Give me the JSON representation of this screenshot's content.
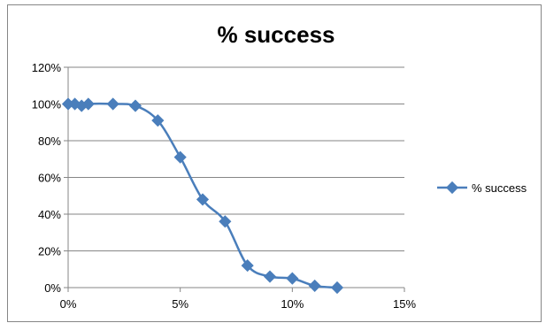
{
  "chart_data": {
    "type": "scatter",
    "title": "% success",
    "xlabel": "",
    "ylabel": "",
    "xlim": [
      0,
      0.15
    ],
    "ylim": [
      0,
      1.2
    ],
    "x_ticks": [
      "0%",
      "5%",
      "10%",
      "15%"
    ],
    "y_ticks": [
      "0%",
      "20%",
      "40%",
      "60%",
      "80%",
      "100%",
      "120%"
    ],
    "grid": "horizontal",
    "legend_position": "right",
    "line_style": "smoothed",
    "colors": {
      "series": "#4a7ebb",
      "grid": "#868686",
      "axis": "#868686",
      "border": "#868686"
    },
    "series": [
      {
        "name": "% success",
        "x": [
          0,
          0.003,
          0.006,
          0.009,
          0.02,
          0.03,
          0.04,
          0.05,
          0.06,
          0.07,
          0.08,
          0.09,
          0.1,
          0.11,
          0.12
        ],
        "y": [
          1.0,
          1.0,
          0.99,
          1.0,
          1.0,
          0.99,
          0.91,
          0.71,
          0.48,
          0.36,
          0.12,
          0.06,
          0.05,
          0.01,
          0.0
        ]
      }
    ]
  }
}
